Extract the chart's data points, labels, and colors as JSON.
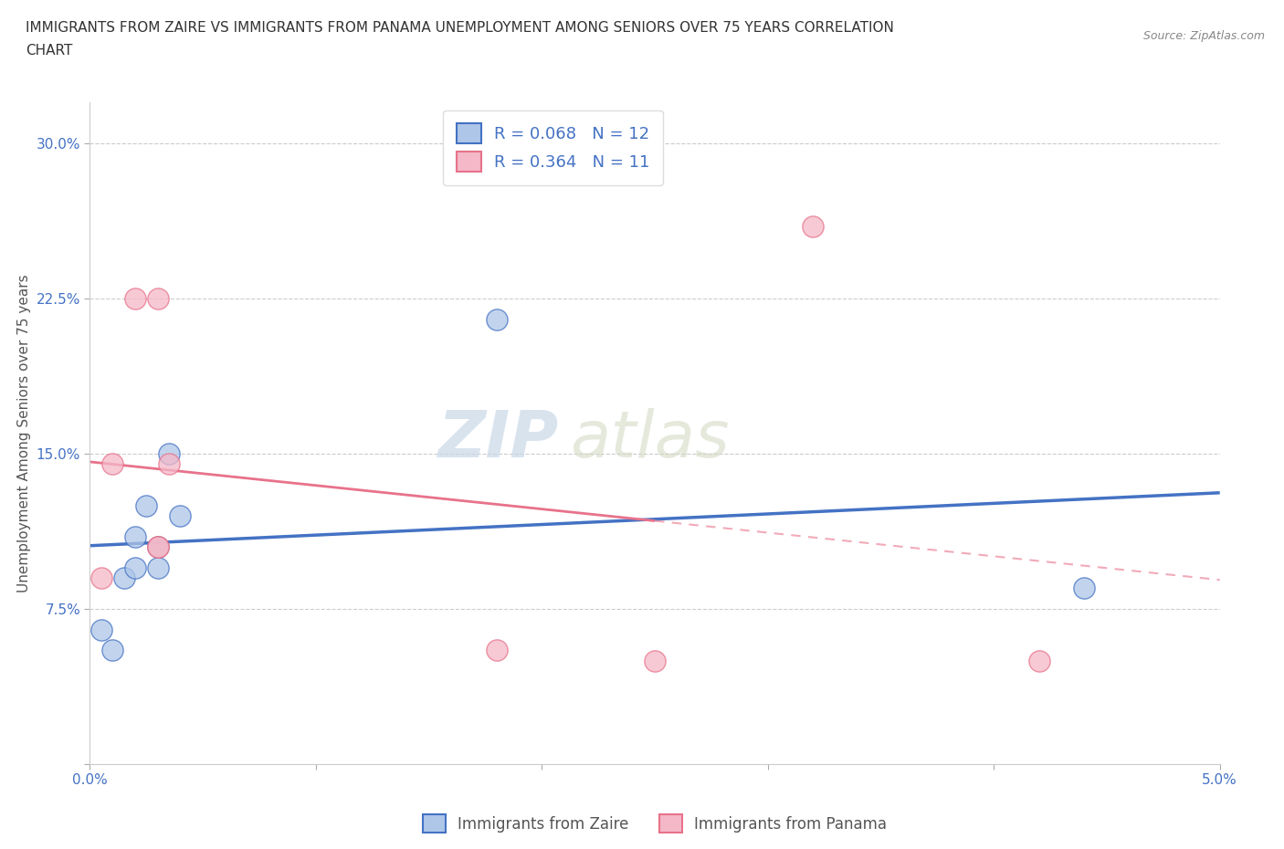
{
  "title_line1": "IMMIGRANTS FROM ZAIRE VS IMMIGRANTS FROM PANAMA UNEMPLOYMENT AMONG SENIORS OVER 75 YEARS CORRELATION",
  "title_line2": "CHART",
  "source": "Source: ZipAtlas.com",
  "ylabel": "Unemployment Among Seniors over 75 years",
  "xlim": [
    0.0,
    0.05
  ],
  "ylim": [
    0.0,
    0.32
  ],
  "xticks": [
    0.0,
    0.01,
    0.02,
    0.03,
    0.04,
    0.05
  ],
  "xticklabels": [
    "0.0%",
    "",
    "",
    "",
    "",
    "5.0%"
  ],
  "yticks": [
    0.0,
    0.075,
    0.15,
    0.225,
    0.3
  ],
  "yticklabels": [
    "",
    "7.5%",
    "15.0%",
    "22.5%",
    "30.0%"
  ],
  "zaire_R": 0.068,
  "zaire_N": 12,
  "panama_R": 0.364,
  "panama_N": 11,
  "zaire_color": "#aec6e8",
  "panama_color": "#f4b8c8",
  "zaire_edge_color": "#4472c4",
  "panama_edge_color": "#e8728a",
  "zaire_line_color": "#4472c4",
  "panama_line_color": "#e8728a",
  "watermark": "ZIPatlas",
  "background_color": "#ffffff",
  "zaire_scatter_x": [
    0.0005,
    0.001,
    0.0015,
    0.002,
    0.002,
    0.0025,
    0.003,
    0.003,
    0.0035,
    0.004,
    0.018,
    0.044
  ],
  "zaire_scatter_y": [
    0.065,
    0.055,
    0.09,
    0.095,
    0.11,
    0.125,
    0.095,
    0.105,
    0.15,
    0.12,
    0.215,
    0.085
  ],
  "panama_scatter_x": [
    0.0005,
    0.001,
    0.002,
    0.003,
    0.003,
    0.003,
    0.0035,
    0.018,
    0.025,
    0.032,
    0.042
  ],
  "panama_scatter_y": [
    0.09,
    0.145,
    0.225,
    0.225,
    0.105,
    0.105,
    0.145,
    0.055,
    0.05,
    0.26,
    0.05
  ],
  "title_fontsize": 11,
  "axis_label_fontsize": 11,
  "tick_fontsize": 11,
  "legend_fontsize": 13,
  "scatter_size": 280,
  "scatter_alpha": 0.75
}
